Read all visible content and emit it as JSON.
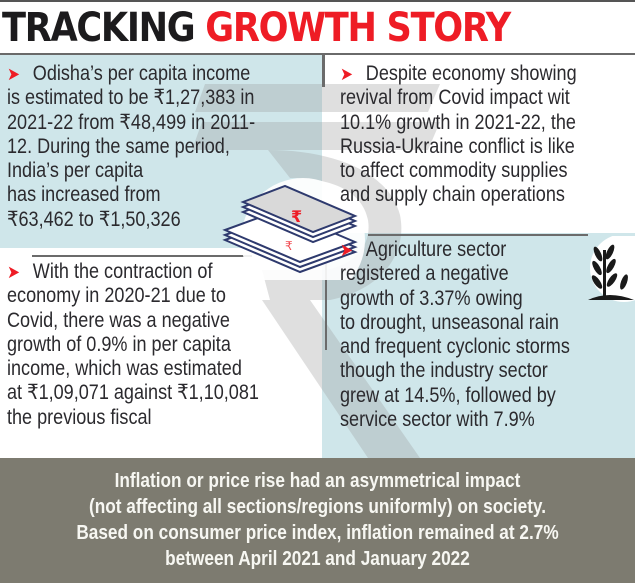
{
  "title": {
    "part1": "TRACKING",
    "part2": "GROWTH STORY"
  },
  "colors": {
    "accent_red": "#ee1c25",
    "panel_blue": "#cfe6ea",
    "footer_bg": "#7d7b70",
    "text_dark": "#2b2a2e"
  },
  "panels": [
    {
      "icon": "arrow-right-icon",
      "lines": [
        "Odisha’s per capita income",
        "is estimated to be ₹1,27,383 in",
        "2021-22 from ₹48,499 in 2011-",
        "12. During the same period,",
        "India’s per capita",
        "has increased from",
        "₹63,462 to  ₹1,50,326"
      ]
    },
    {
      "icon": "arrow-right-icon",
      "lines": [
        "Despite economy showing",
        "revival from Covid impact wit",
        "10.1% growth in 2021-22, the",
        "Russia-Ukraine conflict is like",
        "to affect commodity supplies",
        "and supply chain operations"
      ]
    },
    {
      "icon": "arrow-right-icon",
      "lines": [
        "With the contraction of",
        "economy in 2020-21 due to",
        "Covid, there was a negative",
        "growth of 0.9% in per capita",
        "income, which was estimated",
        "at ₹1,09,071 against ₹1,10,081",
        "the previous fiscal"
      ]
    },
    {
      "icon": "arrow-right-icon",
      "lines": [
        "Agriculture sector",
        "registered a negative",
        "growth of 3.37% owing",
        "to drought, unseasonal rain",
        "and frequent cyclonic storms",
        "though the industry sector",
        "grew at 14.5%, followed by",
        "service sector with 7.9%"
      ]
    }
  ],
  "footer": {
    "lines": [
      "Inflation or price rise had an asymmetrical impact",
      "(not affecting all sections/regions uniformly) on society.",
      "Based on consumer price index, inflation remained at 2.7%",
      "between April 2021 and January 2022"
    ]
  },
  "icons": {
    "watermark": "rupee-watermark-icon",
    "money": "currency-stack-icon",
    "plant": "crop-plant-icon"
  }
}
